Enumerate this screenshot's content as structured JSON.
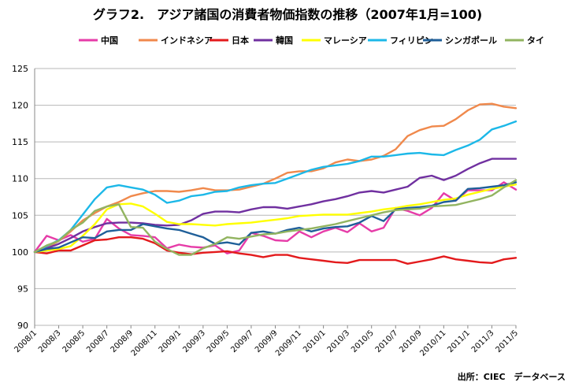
{
  "chart_data": {
    "type": "line",
    "title": "グラフ2.　アジア諸国の消費者物価指数の推移（2007年1月=100)",
    "source": "出所：CIEC　データベース",
    "ylim": [
      90,
      125
    ],
    "yticks": [
      90,
      95,
      100,
      105,
      110,
      115,
      120,
      125
    ],
    "grid": "horizontal",
    "legend_position": "top",
    "x": [
      "2008/1",
      "2008/2",
      "2008/3",
      "2008/4",
      "2008/5",
      "2008/6",
      "2008/7",
      "2008/8",
      "2008/9",
      "2008/10",
      "2008/11",
      "2008/12",
      "2009/1",
      "2009/2",
      "2009/3",
      "2009/4",
      "2009/5",
      "2009/6",
      "2009/7",
      "2009/8",
      "2009/9",
      "2009/10",
      "2009/11",
      "2009/12",
      "2010/1",
      "2010/2",
      "2010/3",
      "2010/4",
      "2010/5",
      "2010/6",
      "2010/7",
      "2010/8",
      "2010/9",
      "2010/10",
      "2010/11",
      "2010/12",
      "2011/1",
      "2011/2",
      "2011/3",
      "2011/4",
      "2011/5"
    ],
    "xtick_labels": [
      "2008/1",
      "2008/3",
      "2008/5",
      "2008/7",
      "2008/9",
      "2008/11",
      "2009/1",
      "2009/3",
      "2009/5",
      "2009/7",
      "2009/9",
      "2009/11",
      "2010/1",
      "2010/3",
      "2010/5",
      "2010/7",
      "2010/9",
      "2010/11",
      "2011/1",
      "2011/3",
      "2011/5"
    ],
    "series": [
      {
        "name": "中国",
        "color": "#e63ca8",
        "values": [
          100,
          102.2,
          101.6,
          102.3,
          101.4,
          101.8,
          104.5,
          103.2,
          102.3,
          102.2,
          102.0,
          100.5,
          101.0,
          100.7,
          100.6,
          100.9,
          99.8,
          100.2,
          102.6,
          102.2,
          101.6,
          101.5,
          102.8,
          102.0,
          102.8,
          103.3,
          102.7,
          103.9,
          102.8,
          103.3,
          106.0,
          105.6,
          105.0,
          106.0,
          108.0,
          107.0,
          108.4,
          108.4,
          108.4,
          109.5,
          108.5
        ]
      },
      {
        "name": "インドネシア",
        "color": "#f0894c",
        "values": [
          100,
          100.6,
          101.5,
          102.8,
          104.3,
          105.3,
          106.2,
          106.8,
          107.6,
          108.0,
          108.3,
          108.3,
          108.2,
          108.4,
          108.7,
          108.4,
          108.4,
          108.5,
          108.9,
          109.3,
          110.0,
          110.8,
          111.0,
          111.0,
          111.4,
          112.2,
          112.6,
          112.4,
          112.6,
          113.1,
          114.0,
          115.8,
          116.6,
          117.1,
          117.2,
          118.1,
          119.3,
          120.1,
          120.2,
          119.8,
          119.6
        ]
      },
      {
        "name": "日本",
        "color": "#e31a1c",
        "values": [
          100,
          99.8,
          100.2,
          100.2,
          100.9,
          101.6,
          101.7,
          102.0,
          102.0,
          101.8,
          101.2,
          100.2,
          99.9,
          99.7,
          99.9,
          100.0,
          100.1,
          99.8,
          99.6,
          99.3,
          99.6,
          99.6,
          99.2,
          99.0,
          98.8,
          98.6,
          98.5,
          98.9,
          98.9,
          98.9,
          98.9,
          98.4,
          98.7,
          99.0,
          99.4,
          99.0,
          98.8,
          98.6,
          98.5,
          99.0,
          99.2
        ]
      },
      {
        "name": "韓国",
        "color": "#7030a0",
        "values": [
          100,
          100.5,
          101.1,
          101.9,
          102.8,
          103.4,
          103.9,
          104.0,
          104.0,
          103.9,
          103.7,
          103.6,
          103.7,
          104.3,
          105.2,
          105.5,
          105.5,
          105.4,
          105.8,
          106.1,
          106.1,
          105.9,
          106.2,
          106.5,
          106.9,
          107.2,
          107.6,
          108.1,
          108.3,
          108.1,
          108.5,
          108.9,
          110.1,
          110.4,
          109.8,
          110.4,
          111.3,
          112.1,
          112.7,
          112.7,
          112.7
        ]
      },
      {
        "name": "マレーシア",
        "color": "#ffff00",
        "values": [
          100,
          100.2,
          100.4,
          100.8,
          102.2,
          103.8,
          105.8,
          106.5,
          106.6,
          106.2,
          105.2,
          104.1,
          103.8,
          103.8,
          103.7,
          103.6,
          103.8,
          103.9,
          104.0,
          104.2,
          104.4,
          104.6,
          104.9,
          105.0,
          105.1,
          105.1,
          105.1,
          105.3,
          105.5,
          105.8,
          106.0,
          106.3,
          106.5,
          106.8,
          107.1,
          107.3,
          107.8,
          108.2,
          108.6,
          108.9,
          109.2
        ]
      },
      {
        "name": "フィリピン",
        "color": "#1cb8e8",
        "values": [
          100,
          100.8,
          101.6,
          103.0,
          105.1,
          107.2,
          108.8,
          109.1,
          108.8,
          108.5,
          107.8,
          106.7,
          107.0,
          107.6,
          107.8,
          108.2,
          108.3,
          108.8,
          109.1,
          109.3,
          109.4,
          110.0,
          110.6,
          111.2,
          111.6,
          111.8,
          112.0,
          112.4,
          113.0,
          113.0,
          113.2,
          113.4,
          113.5,
          113.3,
          113.2,
          113.9,
          114.5,
          115.3,
          116.7,
          117.2,
          117.8
        ]
      },
      {
        "name": "シンガポール",
        "color": "#1f5f99",
        "values": [
          100,
          100.4,
          100.6,
          101.3,
          102.0,
          101.9,
          102.8,
          103.0,
          103.0,
          103.8,
          103.5,
          103.2,
          103.0,
          102.5,
          102.0,
          101.1,
          101.3,
          101.0,
          102.6,
          102.8,
          102.5,
          103.0,
          103.3,
          102.8,
          103.2,
          103.4,
          103.5,
          104.0,
          104.9,
          104.2,
          105.8,
          106.0,
          106.1,
          106.3,
          106.8,
          107.0,
          108.6,
          108.7,
          108.9,
          109.1,
          109.5
        ]
      },
      {
        "name": "タイ",
        "color": "#92b460",
        "values": [
          100,
          100.9,
          101.5,
          103.0,
          104.0,
          105.6,
          106.2,
          106.5,
          103.4,
          103.3,
          101.4,
          100.4,
          99.6,
          99.6,
          100.5,
          101.1,
          102.0,
          101.8,
          102.1,
          102.4,
          102.5,
          102.8,
          103.0,
          103.2,
          103.5,
          103.8,
          104.2,
          104.6,
          105.0,
          105.4,
          105.7,
          105.8,
          105.9,
          106.2,
          106.3,
          106.4,
          106.8,
          107.2,
          107.7,
          108.8,
          109.8
        ]
      }
    ]
  }
}
